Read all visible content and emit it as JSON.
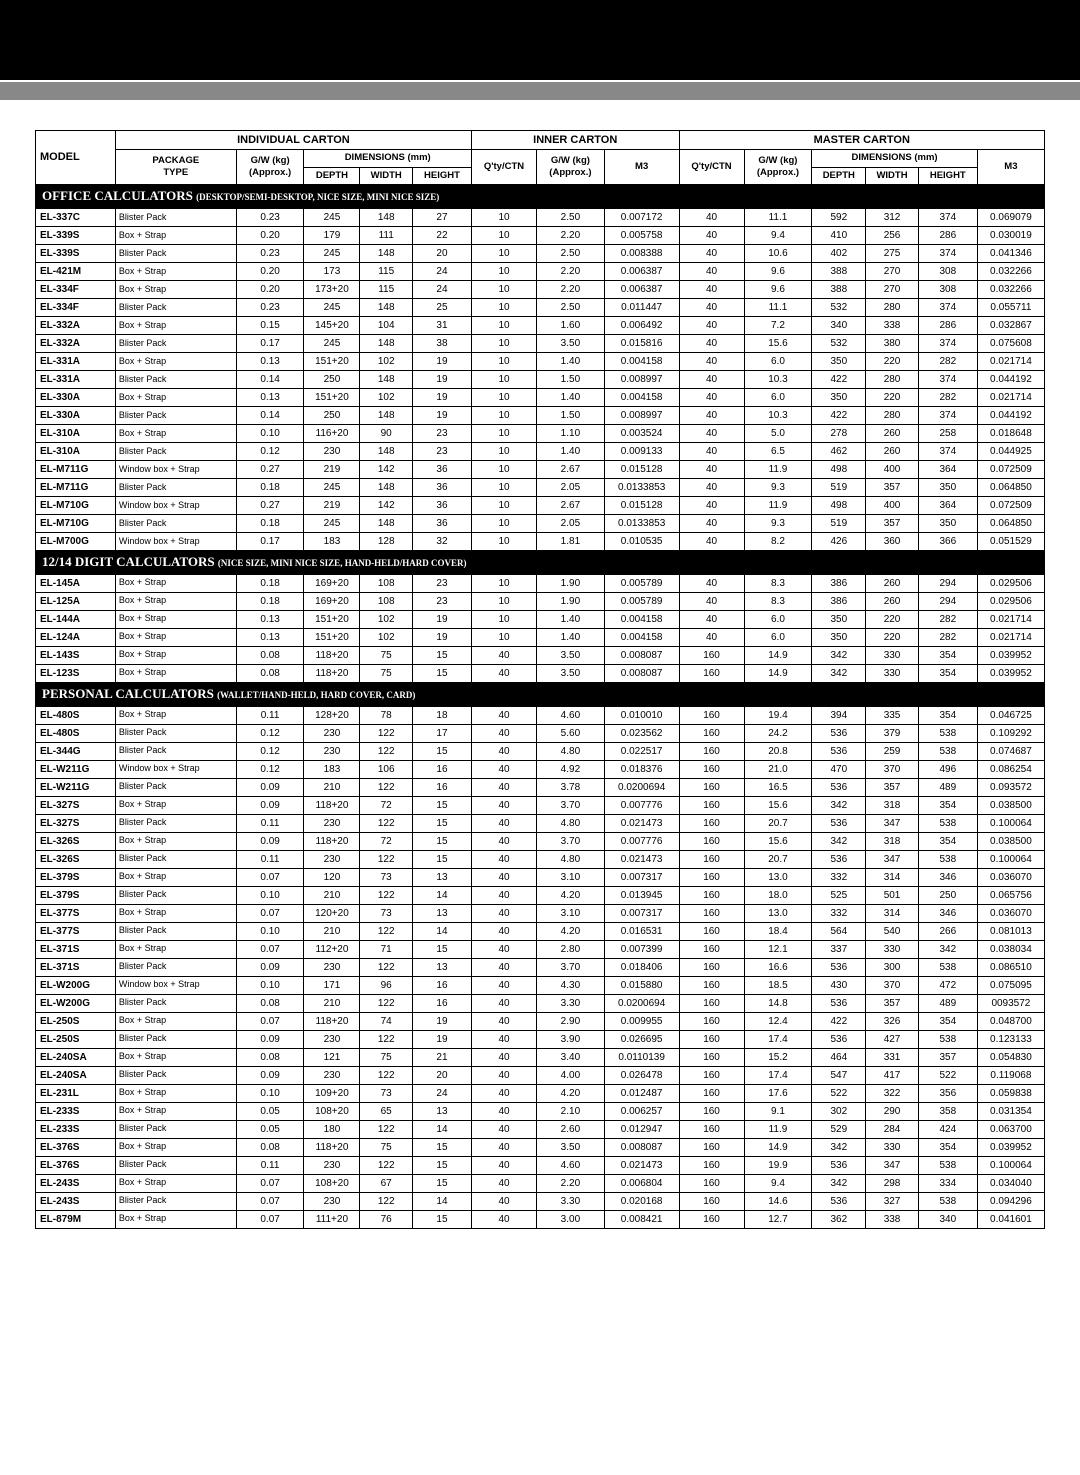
{
  "headers": {
    "group1": "INDIVIDUAL CARTON",
    "group2": "INNER CARTON",
    "group3": "MASTER CARTON",
    "model": "MODEL",
    "package": "PACKAGE",
    "package2": "TYPE",
    "gw": "G/W (kg)",
    "gw2": "(Approx.)",
    "dims": "DIMENSIONS (mm)",
    "depth": "DEPTH",
    "width": "WIDTH",
    "height": "HEIGHT",
    "qty": "Q'ty/CTN",
    "m3": "M3"
  },
  "sections": [
    {
      "title": "OFFICE CALCULATORS",
      "subtitle": "(DESKTOP/SEMI-DESKTOP, NICE SIZE, MINI NICE SIZE)",
      "rows": [
        [
          "EL-337C",
          "Blister Pack",
          "0.23",
          "245",
          "148",
          "27",
          "10",
          "2.50",
          "0.007172",
          "40",
          "11.1",
          "592",
          "312",
          "374",
          "0.069079"
        ],
        [
          "EL-339S",
          "Box + Strap",
          "0.20",
          "179",
          "111",
          "22",
          "10",
          "2.20",
          "0.005758",
          "40",
          "9.4",
          "410",
          "256",
          "286",
          "0.030019"
        ],
        [
          "EL-339S",
          "Blister Pack",
          "0.23",
          "245",
          "148",
          "20",
          "10",
          "2.50",
          "0.008388",
          "40",
          "10.6",
          "402",
          "275",
          "374",
          "0.041346"
        ],
        [
          "EL-421M",
          "Box + Strap",
          "0.20",
          "173",
          "115",
          "24",
          "10",
          "2.20",
          "0.006387",
          "40",
          "9.6",
          "388",
          "270",
          "308",
          "0.032266"
        ],
        [
          "EL-334F",
          "Box + Strap",
          "0.20",
          "173+20",
          "115",
          "24",
          "10",
          "2.20",
          "0.006387",
          "40",
          "9.6",
          "388",
          "270",
          "308",
          "0.032266"
        ],
        [
          "EL-334F",
          "Blister Pack",
          "0.23",
          "245",
          "148",
          "25",
          "10",
          "2.50",
          "0.011447",
          "40",
          "11.1",
          "532",
          "280",
          "374",
          "0.055711"
        ],
        [
          "EL-332A",
          "Box + Strap",
          "0.15",
          "145+20",
          "104",
          "31",
          "10",
          "1.60",
          "0.006492",
          "40",
          "7.2",
          "340",
          "338",
          "286",
          "0.032867"
        ],
        [
          "EL-332A",
          "Blister Pack",
          "0.17",
          "245",
          "148",
          "38",
          "10",
          "3.50",
          "0.015816",
          "40",
          "15.6",
          "532",
          "380",
          "374",
          "0.075608"
        ],
        [
          "EL-331A",
          "Box + Strap",
          "0.13",
          "151+20",
          "102",
          "19",
          "10",
          "1.40",
          "0.004158",
          "40",
          "6.0",
          "350",
          "220",
          "282",
          "0.021714"
        ],
        [
          "EL-331A",
          "Blister Pack",
          "0.14",
          "250",
          "148",
          "19",
          "10",
          "1.50",
          "0.008997",
          "40",
          "10.3",
          "422",
          "280",
          "374",
          "0.044192"
        ],
        [
          "EL-330A",
          "Box + Strap",
          "0.13",
          "151+20",
          "102",
          "19",
          "10",
          "1.40",
          "0.004158",
          "40",
          "6.0",
          "350",
          "220",
          "282",
          "0.021714"
        ],
        [
          "EL-330A",
          "Blister Pack",
          "0.14",
          "250",
          "148",
          "19",
          "10",
          "1.50",
          "0.008997",
          "40",
          "10.3",
          "422",
          "280",
          "374",
          "0.044192"
        ],
        [
          "EL-310A",
          "Box + Strap",
          "0.10",
          "116+20",
          "90",
          "23",
          "10",
          "1.10",
          "0.003524",
          "40",
          "5.0",
          "278",
          "260",
          "258",
          "0.018648"
        ],
        [
          "EL-310A",
          "Blister Pack",
          "0.12",
          "230",
          "148",
          "23",
          "10",
          "1.40",
          "0.009133",
          "40",
          "6.5",
          "462",
          "260",
          "374",
          "0.044925"
        ],
        [
          "EL-M711G",
          "Window box + Strap",
          "0.27",
          "219",
          "142",
          "36",
          "10",
          "2.67",
          "0.015128",
          "40",
          "11.9",
          "498",
          "400",
          "364",
          "0.072509"
        ],
        [
          "EL-M711G",
          "Blister Pack",
          "0.18",
          "245",
          "148",
          "36",
          "10",
          "2.05",
          "0.0133853",
          "40",
          "9.3",
          "519",
          "357",
          "350",
          "0.064850"
        ],
        [
          "EL-M710G",
          "Window box + Strap",
          "0.27",
          "219",
          "142",
          "36",
          "10",
          "2.67",
          "0.015128",
          "40",
          "11.9",
          "498",
          "400",
          "364",
          "0.072509"
        ],
        [
          "EL-M710G",
          "Blister Pack",
          "0.18",
          "245",
          "148",
          "36",
          "10",
          "2.05",
          "0.0133853",
          "40",
          "9.3",
          "519",
          "357",
          "350",
          "0.064850"
        ],
        [
          "EL-M700G",
          "Window box + Strap",
          "0.17",
          "183",
          "128",
          "32",
          "10",
          "1.81",
          "0.010535",
          "40",
          "8.2",
          "426",
          "360",
          "366",
          "0.051529"
        ]
      ]
    },
    {
      "title": "12/14 DIGIT CALCULATORS",
      "subtitle": "(NICE SIZE, MINI NICE SIZE, HAND-HELD/HARD COVER)",
      "rows": [
        [
          "EL-145A",
          "Box + Strap",
          "0.18",
          "169+20",
          "108",
          "23",
          "10",
          "1.90",
          "0.005789",
          "40",
          "8.3",
          "386",
          "260",
          "294",
          "0.029506"
        ],
        [
          "EL-125A",
          "Box + Strap",
          "0.18",
          "169+20",
          "108",
          "23",
          "10",
          "1.90",
          "0.005789",
          "40",
          "8.3",
          "386",
          "260",
          "294",
          "0.029506"
        ],
        [
          "EL-144A",
          "Box + Strap",
          "0.13",
          "151+20",
          "102",
          "19",
          "10",
          "1.40",
          "0.004158",
          "40",
          "6.0",
          "350",
          "220",
          "282",
          "0.021714"
        ],
        [
          "EL-124A",
          "Box + Strap",
          "0.13",
          "151+20",
          "102",
          "19",
          "10",
          "1.40",
          "0.004158",
          "40",
          "6.0",
          "350",
          "220",
          "282",
          "0.021714"
        ],
        [
          "EL-143S",
          "Box + Strap",
          "0.08",
          "118+20",
          "75",
          "15",
          "40",
          "3.50",
          "0.008087",
          "160",
          "14.9",
          "342",
          "330",
          "354",
          "0.039952"
        ],
        [
          "EL-123S",
          "Box + Strap",
          "0.08",
          "118+20",
          "75",
          "15",
          "40",
          "3.50",
          "0.008087",
          "160",
          "14.9",
          "342",
          "330",
          "354",
          "0.039952"
        ]
      ]
    },
    {
      "title": "PERSONAL CALCULATORS",
      "subtitle": "(WALLET/HAND-HELD, HARD COVER, CARD)",
      "rows": [
        [
          "EL-480S",
          "Box + Strap",
          "0.11",
          "128+20",
          "78",
          "18",
          "40",
          "4.60",
          "0.010010",
          "160",
          "19.4",
          "394",
          "335",
          "354",
          "0.046725"
        ],
        [
          "EL-480S",
          "Blister Pack",
          "0.12",
          "230",
          "122",
          "17",
          "40",
          "5.60",
          "0.023562",
          "160",
          "24.2",
          "536",
          "379",
          "538",
          "0.109292"
        ],
        [
          "EL-344G",
          "Blister Pack",
          "0.12",
          "230",
          "122",
          "15",
          "40",
          "4.80",
          "0.022517",
          "160",
          "20.8",
          "536",
          "259",
          "538",
          "0.074687"
        ],
        [
          "EL-W211G",
          "Window box + Strap",
          "0.12",
          "183",
          "106",
          "16",
          "40",
          "4.92",
          "0.018376",
          "160",
          "21.0",
          "470",
          "370",
          "496",
          "0.086254"
        ],
        [
          "EL-W211G",
          "Blister Pack",
          "0.09",
          "210",
          "122",
          "16",
          "40",
          "3.78",
          "0.0200694",
          "160",
          "16.5",
          "536",
          "357",
          "489",
          "0.093572"
        ],
        [
          "EL-327S",
          "Box + Strap",
          "0.09",
          "118+20",
          "72",
          "15",
          "40",
          "3.70",
          "0.007776",
          "160",
          "15.6",
          "342",
          "318",
          "354",
          "0.038500"
        ],
        [
          "EL-327S",
          "Blister Pack",
          "0.11",
          "230",
          "122",
          "15",
          "40",
          "4.80",
          "0.021473",
          "160",
          "20.7",
          "536",
          "347",
          "538",
          "0.100064"
        ],
        [
          "EL-326S",
          "Box + Strap",
          "0.09",
          "118+20",
          "72",
          "15",
          "40",
          "3.70",
          "0.007776",
          "160",
          "15.6",
          "342",
          "318",
          "354",
          "0.038500"
        ],
        [
          "EL-326S",
          "Blister Pack",
          "0.11",
          "230",
          "122",
          "15",
          "40",
          "4.80",
          "0.021473",
          "160",
          "20.7",
          "536",
          "347",
          "538",
          "0.100064"
        ],
        [
          "EL-379S",
          "Box + Strap",
          "0.07",
          "120",
          "73",
          "13",
          "40",
          "3.10",
          "0.007317",
          "160",
          "13.0",
          "332",
          "314",
          "346",
          "0.036070"
        ],
        [
          "EL-379S",
          "Blister Pack",
          "0.10",
          "210",
          "122",
          "14",
          "40",
          "4.20",
          "0.013945",
          "160",
          "18.0",
          "525",
          "501",
          "250",
          "0.065756"
        ],
        [
          "EL-377S",
          "Box + Strap",
          "0.07",
          "120+20",
          "73",
          "13",
          "40",
          "3.10",
          "0.007317",
          "160",
          "13.0",
          "332",
          "314",
          "346",
          "0.036070"
        ],
        [
          "EL-377S",
          "Blister Pack",
          "0.10",
          "210",
          "122",
          "14",
          "40",
          "4.20",
          "0.016531",
          "160",
          "18.4",
          "564",
          "540",
          "266",
          "0.081013"
        ],
        [
          "EL-371S",
          "Box + Strap",
          "0.07",
          "112+20",
          "71",
          "15",
          "40",
          "2.80",
          "0.007399",
          "160",
          "12.1",
          "337",
          "330",
          "342",
          "0.038034"
        ],
        [
          "EL-371S",
          "Blister Pack",
          "0.09",
          "230",
          "122",
          "13",
          "40",
          "3.70",
          "0.018406",
          "160",
          "16.6",
          "536",
          "300",
          "538",
          "0.086510"
        ],
        [
          "EL-W200G",
          "Window box + Strap",
          "0.10",
          "171",
          "96",
          "16",
          "40",
          "4.30",
          "0.015880",
          "160",
          "18.5",
          "430",
          "370",
          "472",
          "0.075095"
        ],
        [
          "EL-W200G",
          "Blister Pack",
          "0.08",
          "210",
          "122",
          "16",
          "40",
          "3.30",
          "0.0200694",
          "160",
          "14.8",
          "536",
          "357",
          "489",
          "0093572"
        ],
        [
          "EL-250S",
          "Box + Strap",
          "0.07",
          "118+20",
          "74",
          "19",
          "40",
          "2.90",
          "0.009955",
          "160",
          "12.4",
          "422",
          "326",
          "354",
          "0.048700"
        ],
        [
          "EL-250S",
          "Blister Pack",
          "0.09",
          "230",
          "122",
          "19",
          "40",
          "3.90",
          "0.026695",
          "160",
          "17.4",
          "536",
          "427",
          "538",
          "0.123133"
        ],
        [
          "EL-240SA",
          "Box + Strap",
          "0.08",
          "121",
          "75",
          "21",
          "40",
          "3.40",
          "0.0110139",
          "160",
          "15.2",
          "464",
          "331",
          "357",
          "0.054830"
        ],
        [
          "EL-240SA",
          "Blister Pack",
          "0.09",
          "230",
          "122",
          "20",
          "40",
          "4.00",
          "0.026478",
          "160",
          "17.4",
          "547",
          "417",
          "522",
          "0.119068"
        ],
        [
          "EL-231L",
          "Box + Strap",
          "0.10",
          "109+20",
          "73",
          "24",
          "40",
          "4.20",
          "0.012487",
          "160",
          "17.6",
          "522",
          "322",
          "356",
          "0.059838"
        ],
        [
          "EL-233S",
          "Box + Strap",
          "0.05",
          "108+20",
          "65",
          "13",
          "40",
          "2.10",
          "0.006257",
          "160",
          "9.1",
          "302",
          "290",
          "358",
          "0.031354"
        ],
        [
          "EL-233S",
          "Blister Pack",
          "0.05",
          "180",
          "122",
          "14",
          "40",
          "2.60",
          "0.012947",
          "160",
          "11.9",
          "529",
          "284",
          "424",
          "0.063700"
        ],
        [
          "EL-376S",
          "Box + Strap",
          "0.08",
          "118+20",
          "75",
          "15",
          "40",
          "3.50",
          "0.008087",
          "160",
          "14.9",
          "342",
          "330",
          "354",
          "0.039952"
        ],
        [
          "EL-376S",
          "Blister Pack",
          "0.11",
          "230",
          "122",
          "15",
          "40",
          "4.60",
          "0.021473",
          "160",
          "19.9",
          "536",
          "347",
          "538",
          "0.100064"
        ],
        [
          "EL-243S",
          "Box + Strap",
          "0.07",
          "108+20",
          "67",
          "15",
          "40",
          "2.20",
          "0.006804",
          "160",
          "9.4",
          "342",
          "298",
          "334",
          "0.034040"
        ],
        [
          "EL-243S",
          "Blister Pack",
          "0.07",
          "230",
          "122",
          "14",
          "40",
          "3.30",
          "0.020168",
          "160",
          "14.6",
          "536",
          "327",
          "538",
          "0.094296"
        ],
        [
          "EL-879M",
          "Box + Strap",
          "0.07",
          "111+20",
          "76",
          "15",
          "40",
          "3.00",
          "0.008421",
          "160",
          "12.7",
          "362",
          "338",
          "340",
          "0.041601"
        ]
      ]
    }
  ]
}
